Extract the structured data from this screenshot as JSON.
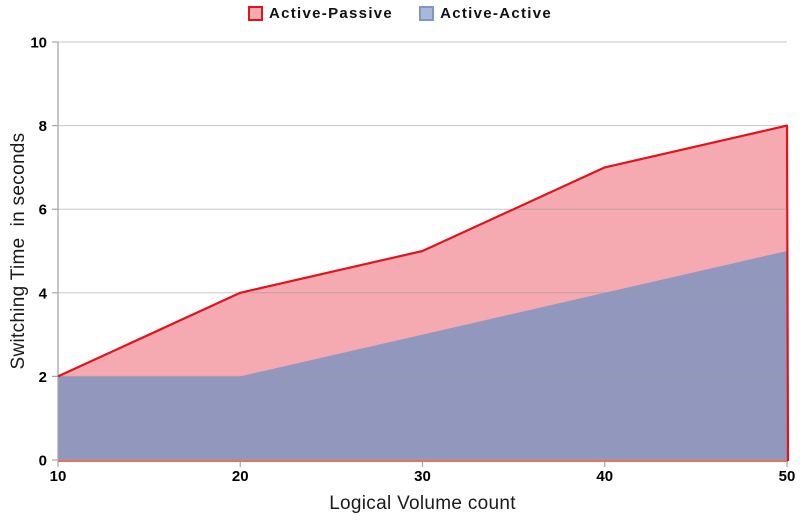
{
  "legend": {
    "items": [
      {
        "label": "Active-Passive",
        "swatch_fill": "#F5ABB1",
        "swatch_border": "#E2131B"
      },
      {
        "label": "Active-Active",
        "swatch_fill": "#A9B7DB",
        "swatch_border": "#7E97C9"
      }
    ]
  },
  "chart_data": {
    "type": "area",
    "x": [
      10,
      20,
      30,
      40,
      50
    ],
    "series": [
      {
        "name": "Active-Passive",
        "values": [
          2,
          4,
          5,
          7,
          8
        ],
        "fill_color": "#F5A9B0",
        "line_color": "#E2131B"
      },
      {
        "name": "Active-Active",
        "values": [
          2,
          2,
          3,
          4,
          5
        ],
        "fill_color": "#9297BE",
        "line_color": null
      }
    ],
    "title": "",
    "xlabel": "Logical Volume count",
    "ylabel": "Switching Time  in seconds",
    "xlim": [
      10,
      50
    ],
    "ylim": [
      0,
      10
    ],
    "xticks": [
      10,
      20,
      30,
      40,
      50
    ],
    "yticks": [
      0,
      2,
      4,
      6,
      8,
      10
    ],
    "grid": true,
    "legend_position": "top-center",
    "axis_colors": {
      "x_axis_line": "#E8735C",
      "y_axis_line": "#A6A6A6",
      "gridline": "#9A9A9A",
      "tick": "#A6A6A6",
      "tick_label": "#000000"
    }
  }
}
